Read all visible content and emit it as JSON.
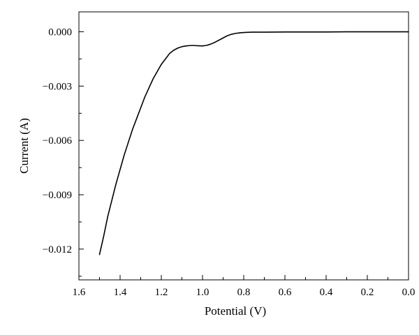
{
  "chart_data": {
    "type": "line",
    "title": "",
    "xlabel": "Potential (V)",
    "ylabel": "Current (A)",
    "x_reversed": true,
    "xlim": [
      1.6,
      0.0
    ],
    "ylim": [
      -0.0137,
      0.0011
    ],
    "x_ticks": [
      1.6,
      1.4,
      1.2,
      1.0,
      0.8,
      0.6,
      0.4,
      0.2,
      0.0
    ],
    "x_tick_labels": [
      "1.6",
      "1.4",
      "1.2",
      "1.0",
      "0.8",
      "0.6",
      "0.4",
      "0.2",
      "0.0"
    ],
    "y_ticks": [
      0.0,
      -0.003,
      -0.006,
      -0.009,
      -0.012
    ],
    "y_tick_labels": [
      "0.000",
      "−0.003",
      "−0.006",
      "−0.009",
      "−0.012"
    ],
    "grid": false,
    "legend": "none",
    "series": [
      {
        "x": [
          1.5,
          1.48,
          1.46,
          1.44,
          1.42,
          1.4,
          1.38,
          1.36,
          1.34,
          1.32,
          1.3,
          1.28,
          1.26,
          1.24,
          1.22,
          1.2,
          1.18,
          1.16,
          1.14,
          1.12,
          1.1,
          1.08,
          1.06,
          1.04,
          1.02,
          1.0,
          0.98,
          0.96,
          0.94,
          0.92,
          0.9,
          0.88,
          0.86,
          0.84,
          0.82,
          0.8,
          0.78,
          0.76,
          0.74,
          0.72,
          0.7,
          0.6,
          0.5,
          0.4,
          0.3,
          0.2,
          0.1,
          0.0
        ],
        "y": [
          -0.0123,
          -0.0113,
          -0.0102,
          -0.0093,
          -0.0084,
          -0.0076,
          -0.0068,
          -0.0061,
          -0.0054,
          -0.0048,
          -0.0042,
          -0.0036,
          -0.0031,
          -0.0026,
          -0.0022,
          -0.0018,
          -0.0015,
          -0.0012,
          -0.00102,
          -0.0009,
          -0.00082,
          -0.00078,
          -0.00076,
          -0.00076,
          -0.00077,
          -0.00078,
          -0.00075,
          -0.00068,
          -0.00058,
          -0.00046,
          -0.00034,
          -0.00022,
          -0.00014,
          -9e-05,
          -6e-05,
          -4e-05,
          -3e-05,
          -2e-05,
          -2e-05,
          -2e-05,
          -2e-05,
          -1e-05,
          -1e-05,
          -1e-05,
          0.0,
          0.0,
          0.0,
          0.0
        ]
      }
    ]
  }
}
